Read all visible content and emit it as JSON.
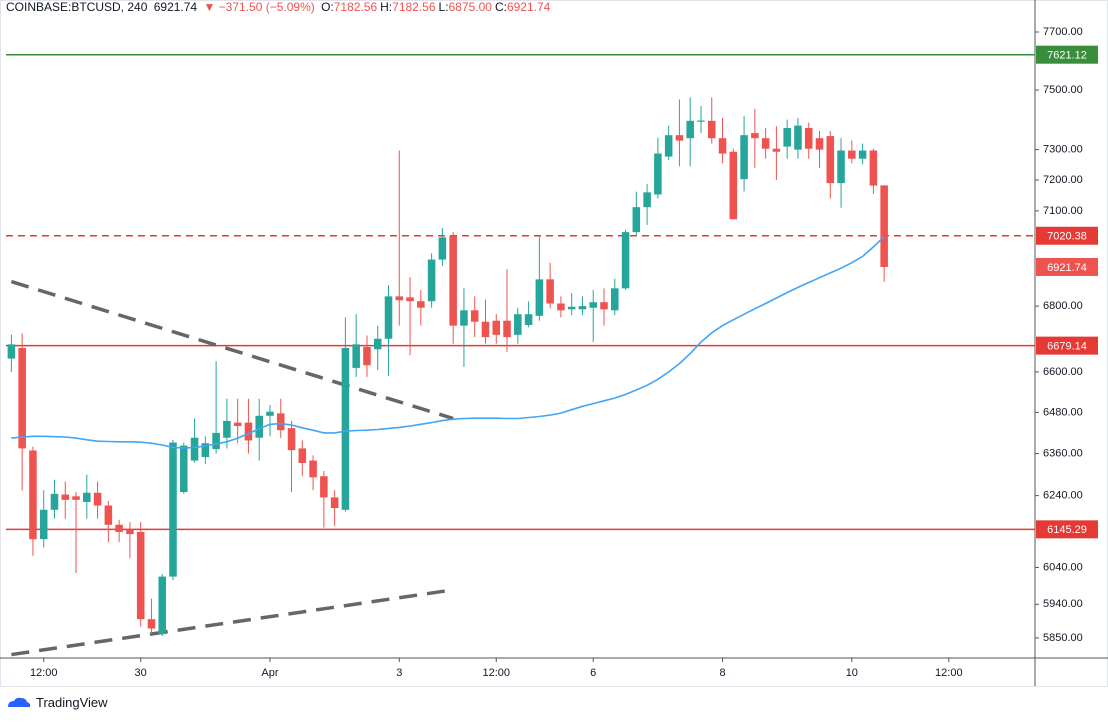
{
  "header": {
    "symbol": "COINBASE:BTCUSD, 240",
    "last": "6921.74",
    "change": "▼ −371.50 (−5.09%)",
    "ohlc": [
      {
        "label": "O:",
        "value": "7182.56"
      },
      {
        "label": "H:",
        "value": "7182.56"
      },
      {
        "label": "L:",
        "value": "6875.00"
      },
      {
        "label": "C:",
        "value": "6921.74"
      }
    ]
  },
  "chart_data": {
    "type": "candlestick",
    "log": true,
    "grid": false,
    "up_color": "#26a69a",
    "down_color": "#ef5350",
    "open": [
      6640,
      6672,
      6369,
      6118,
      6200,
      6243,
      6238,
      6222,
      6248,
      6212,
      6158,
      6145,
      6138,
      5900,
      5860,
      6015,
      6250,
      6340,
      6350,
      6373,
      6406,
      6450,
      6450,
      6406,
      6470,
      6477,
      6434,
      6375,
      6340,
      6295,
      6235,
      6200,
      6612,
      6675,
      6668,
      6700,
      6830,
      6827,
      6815,
      6815,
      6945,
      7020,
      6740,
      6787,
      6752,
      6755,
      6755,
      6712,
      6742,
      6770,
      6883,
      6808,
      6790,
      6790,
      6795,
      6812,
      6787,
      6855,
      7032,
      7112,
      7153,
      7277,
      7348,
      7338,
      7393,
      7396,
      7338,
      7293,
      7203,
      7355,
      7338,
      7303,
      7310,
      7300,
      7372,
      7338,
      7345,
      7190,
      7297,
      7270,
      7297,
      7182.56
    ],
    "high": [
      6712,
      6716,
      6380,
      6255,
      6285,
      6280,
      6250,
      6300,
      6280,
      6225,
      6172,
      6165,
      6165,
      5955,
      6022,
      6400,
      6392,
      6462,
      6410,
      6632,
      6520,
      6520,
      6520,
      6520,
      6502,
      6520,
      6455,
      6398,
      6355,
      6310,
      6255,
      6765,
      6775,
      6710,
      6740,
      6865,
      7297,
      6890,
      6850,
      6965,
      7045,
      7032,
      6855,
      6830,
      6820,
      6775,
      6915,
      6795,
      6815,
      7020,
      6935,
      6830,
      6840,
      6830,
      6850,
      6855,
      6885,
      7040,
      7162,
      7187,
      7340,
      7380,
      7468,
      7475,
      7446,
      7475,
      7406,
      7303,
      7413,
      7436,
      7372,
      7378,
      7400,
      7406,
      7390,
      7362,
      7362,
      7338,
      7330,
      7320,
      7303,
      7182.56
    ],
    "low": [
      6600,
      6255,
      6072,
      6095,
      6175,
      6175,
      6025,
      6175,
      6175,
      6110,
      6110,
      6065,
      5880,
      5860,
      5855,
      6005,
      6245,
      6334,
      6330,
      6360,
      6375,
      6390,
      6360,
      6340,
      6410,
      6405,
      6250,
      6295,
      6255,
      6150,
      6155,
      6195,
      6585,
      6585,
      6605,
      6588,
      6740,
      6650,
      6740,
      6795,
      6925,
      6685,
      6615,
      6705,
      6685,
      6685,
      6660,
      6685,
      6735,
      6755,
      6793,
      6765,
      6772,
      6772,
      6690,
      6740,
      6772,
      6850,
      7022,
      7055,
      7140,
      7265,
      7245,
      7245,
      7355,
      7320,
      7255,
      7073,
      7163,
      7240,
      7270,
      7200,
      7270,
      7270,
      7270,
      7240,
      7140,
      7110,
      7255,
      7252,
      7155,
      6875.0
    ],
    "close": [
      6683,
      6375,
      6118,
      6200,
      6245,
      6228,
      6228,
      6248,
      6212,
      6158,
      6138,
      6132,
      5900,
      5875,
      6015,
      6392,
      6383,
      6406,
      6390,
      6420,
      6455,
      6440,
      6398,
      6470,
      6482,
      6428,
      6370,
      6333,
      6292,
      6235,
      6205,
      6672,
      6683,
      6620,
      6700,
      6830,
      6818,
      6815,
      6795,
      6945,
      7015,
      6740,
      6787,
      6752,
      6705,
      6712,
      6705,
      6775,
      6775,
      6883,
      6808,
      6787,
      6798,
      6800,
      6812,
      6790,
      6855,
      7032,
      7112,
      7160,
      7287,
      7348,
      7330,
      7396,
      7397,
      7338,
      7287,
      7073,
      7348,
      7338,
      7303,
      7293,
      7372,
      7380,
      7303,
      7300,
      7190,
      7297,
      7270,
      7297,
      7182,
      6921.74
    ],
    "ma": {
      "color": "#42a5f5",
      "values": [
        6405,
        6408,
        6410,
        6410,
        6409,
        6408,
        6405,
        6400,
        6396,
        6395,
        6394,
        6394,
        6393,
        6390,
        6385,
        6378,
        6376,
        6378,
        6382,
        6388,
        6394,
        6405,
        6418,
        6432,
        6445,
        6447,
        6443,
        6435,
        6428,
        6420,
        6420,
        6425,
        6427,
        6428,
        6430,
        6433,
        6436,
        6440,
        6445,
        6450,
        6456,
        6460,
        6462,
        6463,
        6463,
        6463,
        6462,
        6462,
        6465,
        6468,
        6472,
        6478,
        6488,
        6498,
        6506,
        6514,
        6522,
        6533,
        6546,
        6560,
        6578,
        6600,
        6625,
        6655,
        6690,
        6718,
        6740,
        6758,
        6775,
        6792,
        6808,
        6825,
        6842,
        6858,
        6873,
        6888,
        6903,
        6918,
        6935,
        6955,
        6985,
        7018
      ]
    },
    "trendlines": [
      {
        "color": "#666666",
        "x": [
          0,
          41
        ],
        "y": [
          6876,
          6462
        ]
      },
      {
        "color": "#666666",
        "x": [
          0,
          41
        ],
        "y": [
          5806,
          5979
        ]
      }
    ],
    "levels": [
      {
        "value": 7621.12,
        "color": "#388e3c",
        "dashed": false
      },
      {
        "value": 7020.38,
        "color": "#e53935",
        "dashed": true
      },
      {
        "value": 6679.14,
        "color": "#e53935",
        "dashed": false
      },
      {
        "value": 6145.29,
        "color": "#e53935",
        "dashed": false
      }
    ],
    "last_color": "#ef5350",
    "ylim": [
      5797,
      7749
    ],
    "yticks": [
      {
        "value": 7700,
        "label": "7700.00"
      },
      {
        "value": 7500,
        "label": "7500.00"
      },
      {
        "value": 7300,
        "label": "7300.00"
      },
      {
        "value": 7200,
        "label": "7200.00"
      },
      {
        "value": 7100,
        "label": "7100.00"
      },
      {
        "value": 6800,
        "label": "6800.00"
      },
      {
        "value": 6600,
        "label": "6600.00"
      },
      {
        "value": 6480,
        "label": "6480.00"
      },
      {
        "value": 6360,
        "label": "6360.00"
      },
      {
        "value": 6240,
        "label": "6240.00"
      },
      {
        "value": 6040,
        "label": "6040.00"
      },
      {
        "value": 5940,
        "label": "5940.00"
      },
      {
        "value": 5850,
        "label": "5850.00"
      }
    ],
    "xlim": [
      -0.5,
      95
    ],
    "xticks": [
      {
        "value": 3,
        "label": "12:00"
      },
      {
        "value": 12,
        "label": "30"
      },
      {
        "value": 24,
        "label": "Apr"
      },
      {
        "value": 36,
        "label": "3"
      },
      {
        "value": 45,
        "label": "12:00"
      },
      {
        "value": 54,
        "label": "6"
      },
      {
        "value": 66,
        "label": "8"
      },
      {
        "value": 78,
        "label": "10"
      },
      {
        "value": 87,
        "label": "12:00"
      }
    ]
  },
  "footer": {
    "brand": "TradingView"
  }
}
